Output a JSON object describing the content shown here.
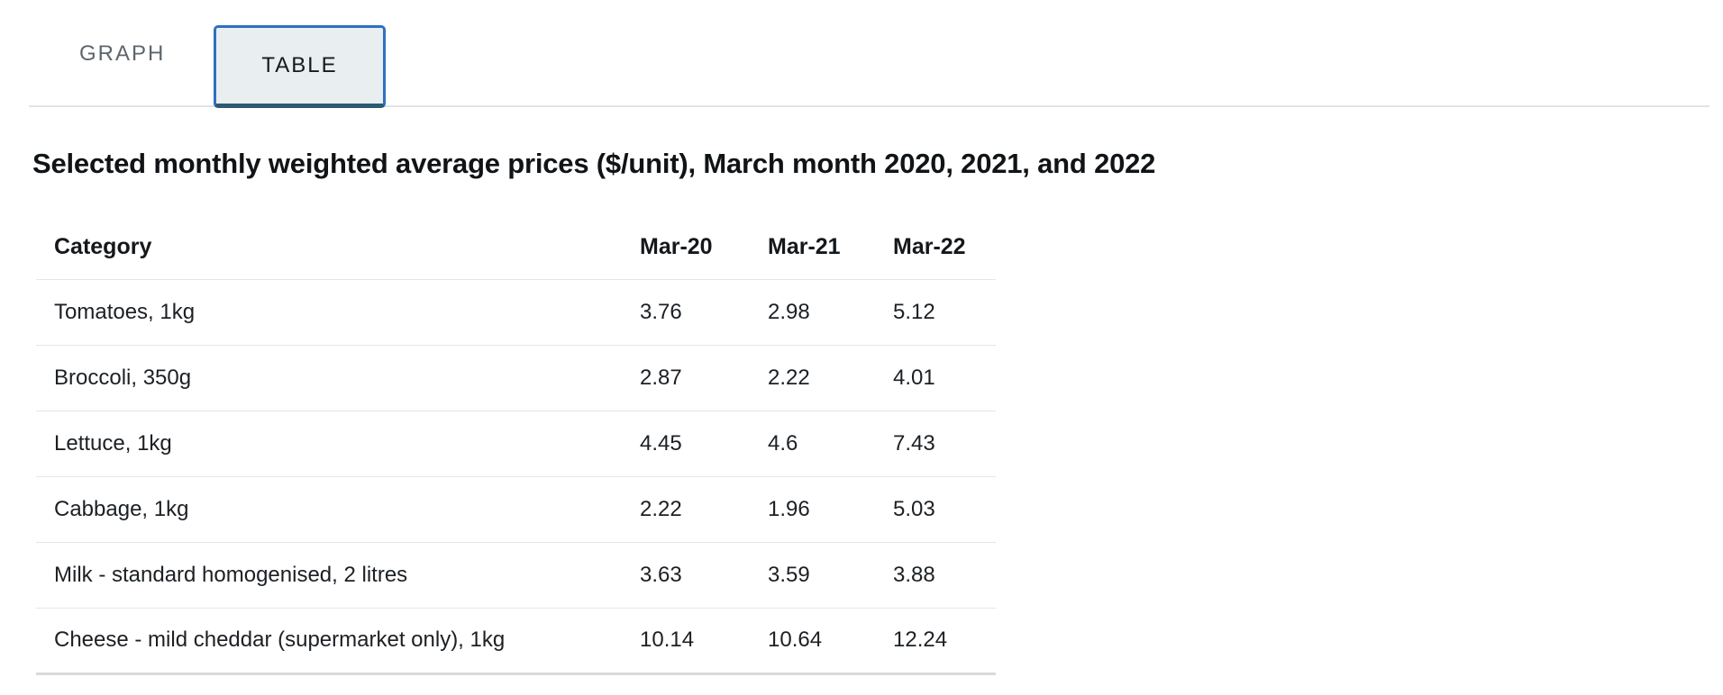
{
  "tabs": [
    {
      "label": "GRAPH",
      "active": false
    },
    {
      "label": "TABLE",
      "active": true
    }
  ],
  "page_title": "Selected monthly weighted average prices ($/unit), March month 2020, 2021, and 2022",
  "table": {
    "columns": [
      "Category",
      "Mar-20",
      "Mar-21",
      "Mar-22"
    ],
    "rows": [
      {
        "category": "Tomatoes, 1kg",
        "values": [
          "3.76",
          "2.98",
          "5.12"
        ]
      },
      {
        "category": "Broccoli, 350g",
        "values": [
          "2.87",
          "2.22",
          "4.01"
        ]
      },
      {
        "category": "Lettuce, 1kg",
        "values": [
          "4.45",
          "4.6",
          "7.43"
        ]
      },
      {
        "category": "Cabbage, 1kg",
        "values": [
          "2.22",
          "1.96",
          "5.03"
        ]
      },
      {
        "category": "Milk - standard homogenised, 2 litres",
        "values": [
          "3.63",
          "3.59",
          "3.88"
        ]
      },
      {
        "category": "Cheese - mild cheddar (supermarket only), 1kg",
        "values": [
          "10.14",
          "10.64",
          "12.24"
        ]
      }
    ]
  },
  "colors": {
    "active_tab_border": "#2f6fc1",
    "active_tab_border_bottom": "#2d5a70",
    "active_tab_background": "#e9eef1",
    "inactive_tab_text": "#5d666d",
    "row_divider": "#e3e6e8",
    "table_bottom_border": "#d7dadc",
    "text": "#1c2024"
  },
  "chart_data": {
    "type": "table",
    "title": "Selected monthly weighted average prices ($/unit), March month 2020, 2021, and 2022",
    "columns": [
      "Category",
      "Mar-20",
      "Mar-21",
      "Mar-22"
    ],
    "rows": [
      [
        "Tomatoes, 1kg",
        3.76,
        2.98,
        5.12
      ],
      [
        "Broccoli, 350g",
        2.87,
        2.22,
        4.01
      ],
      [
        "Lettuce, 1kg",
        4.45,
        4.6,
        7.43
      ],
      [
        "Cabbage, 1kg",
        2.22,
        1.96,
        5.03
      ],
      [
        "Milk - standard homogenised, 2 litres",
        3.63,
        3.59,
        3.88
      ],
      [
        "Cheese - mild cheddar (supermarket only), 1kg",
        10.14,
        10.64,
        12.24
      ]
    ]
  }
}
